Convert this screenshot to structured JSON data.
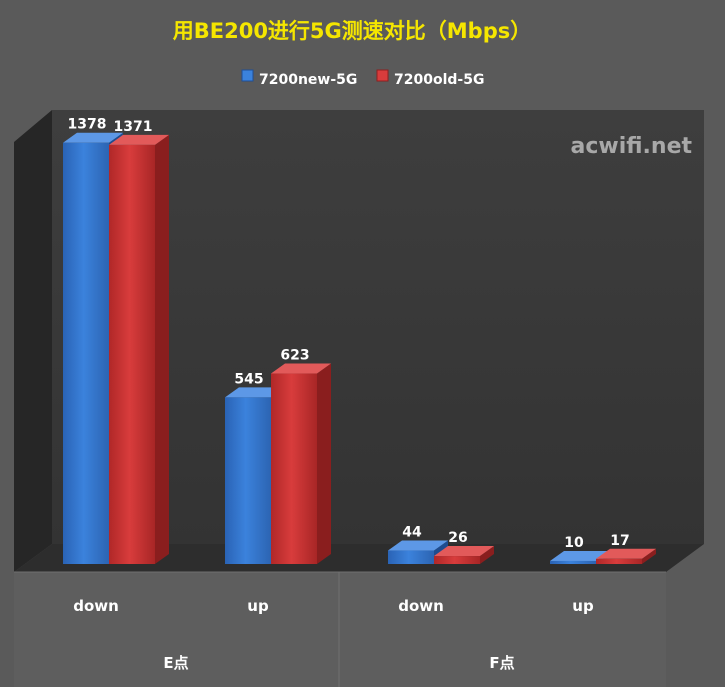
{
  "chart_data": {
    "type": "bar",
    "title": "用BE200进行5G测速对比（Mbps）",
    "watermark": "acwifi.net",
    "groups": [
      {
        "label": "E点",
        "categories": [
          "down",
          "up"
        ]
      },
      {
        "label": "F点",
        "categories": [
          "down",
          "up"
        ]
      }
    ],
    "categories": [
      "down",
      "up",
      "down",
      "up"
    ],
    "series": [
      {
        "name": "7200new-5G",
        "color": "#2f6fc6",
        "values": [
          1378,
          545,
          44,
          10
        ]
      },
      {
        "name": "7200old-5G",
        "color": "#c83232",
        "values": [
          1371,
          623,
          26,
          17
        ]
      }
    ],
    "ylim": [
      0,
      1400
    ],
    "legend_position": "top-center",
    "style": {
      "title_color": "#f5e600",
      "background": "#5a5a5a",
      "plot_background": "#3c3c3c",
      "label_color": "#ffffff",
      "watermark_color": "#a8a8a8"
    }
  }
}
